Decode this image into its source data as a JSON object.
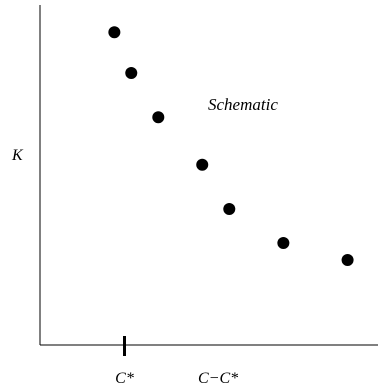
{
  "chart_data": {
    "type": "scatter",
    "title": "",
    "xlabel": "C−C*",
    "ylabel": "K",
    "annotation": "Schematic",
    "x_ticks": [
      {
        "value": 0.25,
        "label": "C*"
      }
    ],
    "xlim": [
      0,
      1
    ],
    "ylim": [
      0,
      1
    ],
    "grid": false,
    "series": [
      {
        "points": [
          {
            "x": 0.22,
            "y": 0.92
          },
          {
            "x": 0.27,
            "y": 0.8
          },
          {
            "x": 0.35,
            "y": 0.67
          },
          {
            "x": 0.48,
            "y": 0.53
          },
          {
            "x": 0.56,
            "y": 0.4
          },
          {
            "x": 0.72,
            "y": 0.3
          },
          {
            "x": 0.91,
            "y": 0.25
          }
        ]
      }
    ]
  }
}
